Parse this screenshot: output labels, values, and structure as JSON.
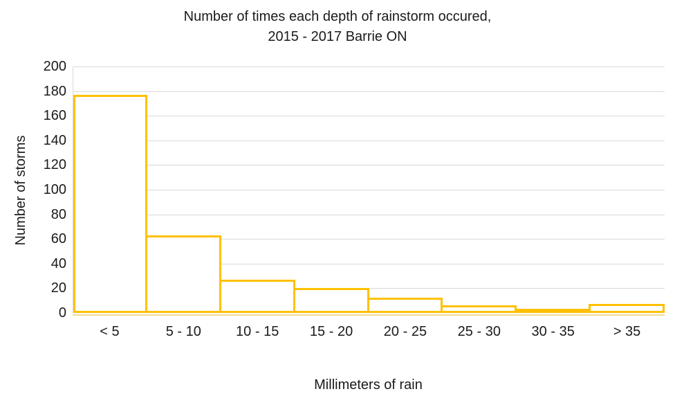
{
  "chart_data": {
    "type": "bar",
    "title_line1": "Number of times each depth of rainstorm occured,",
    "title_line2": "2015 - 2017 Barrie ON",
    "categories": [
      "< 5",
      "5 - 10",
      "10 - 15",
      "15 - 20",
      "20 - 25",
      "25 - 30",
      "30 - 35",
      "> 35"
    ],
    "values": [
      176,
      62,
      26,
      19,
      11,
      5,
      1,
      6
    ],
    "xlabel": "Millimeters of rain",
    "ylabel": "Number of storms",
    "ylim": [
      0,
      200
    ],
    "yticks": [
      0,
      20,
      40,
      60,
      80,
      100,
      120,
      140,
      160,
      180,
      200
    ],
    "grid": "horizontal",
    "legend": "none",
    "bar_style": "outlined, no gap between bars",
    "colors": {
      "bar_border": "#ffc000",
      "bar_fill": "#ffffff",
      "gridline": "#d9d9d9",
      "axis_line": "#f0d894",
      "text": "#1a1a1a",
      "background": "#ffffff"
    }
  }
}
